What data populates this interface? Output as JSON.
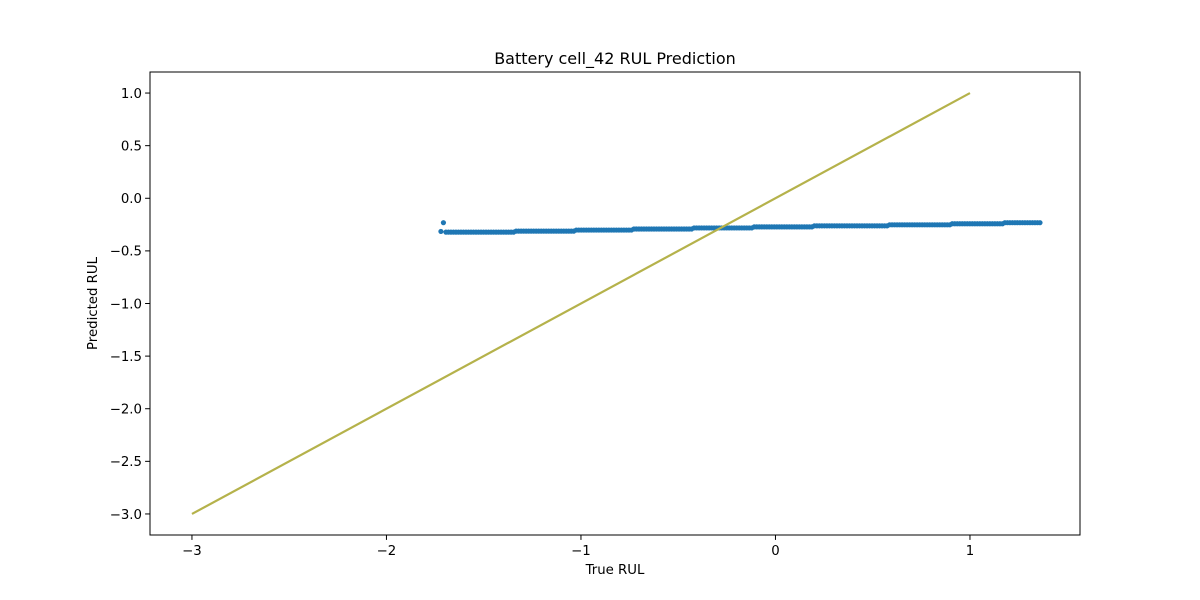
{
  "chart_data": {
    "type": "scatter",
    "title": "Battery cell_42 RUL Prediction",
    "xlabel": "True RUL",
    "ylabel": "Predicted RUL",
    "xlim": [
      -3.2157,
      1.5657
    ],
    "ylim": [
      -3.2,
      1.2
    ],
    "xticks": [
      -3,
      -2,
      -1,
      0,
      1
    ],
    "xtick_labels": [
      "−3",
      "−2",
      "−1",
      "0",
      "1"
    ],
    "yticks": [
      1.0,
      0.5,
      0.0,
      -0.5,
      -1.0,
      -1.5,
      -2.0,
      -2.5,
      -3.0
    ],
    "ytick_labels": [
      "1.0",
      "0.5",
      "0.0",
      "−0.5",
      "−1.0",
      "−1.5",
      "−2.0",
      "−2.5",
      "−3.0"
    ],
    "grid": false,
    "series": [
      {
        "kind": "scatter",
        "color": "#1f77b4",
        "x_range": [
          -1.72,
          1.36
        ],
        "n_points": 240,
        "steps": [
          {
            "x_start": -1.72,
            "x_end": -1.71,
            "y": -0.315
          },
          {
            "x_start": -1.7,
            "x_end": -1.34,
            "y": -0.322
          },
          {
            "x_start": -1.34,
            "x_end": -1.03,
            "y": -0.312
          },
          {
            "x_start": -1.03,
            "x_end": -0.73,
            "y": -0.302
          },
          {
            "x_start": -0.73,
            "x_end": -0.42,
            "y": -0.292
          },
          {
            "x_start": -0.42,
            "x_end": -0.11,
            "y": -0.282
          },
          {
            "x_start": -0.11,
            "x_end": 0.19,
            "y": -0.272
          },
          {
            "x_start": 0.19,
            "x_end": 0.58,
            "y": -0.262
          },
          {
            "x_start": 0.58,
            "x_end": 0.9,
            "y": -0.252
          },
          {
            "x_start": 0.9,
            "x_end": 1.17,
            "y": -0.242
          },
          {
            "x_start": 1.17,
            "x_end": 1.36,
            "y": -0.232
          }
        ]
      },
      {
        "kind": "line",
        "color": "#b5b24b",
        "x": [
          -3,
          1
        ],
        "y": [
          -3,
          1
        ]
      }
    ]
  }
}
